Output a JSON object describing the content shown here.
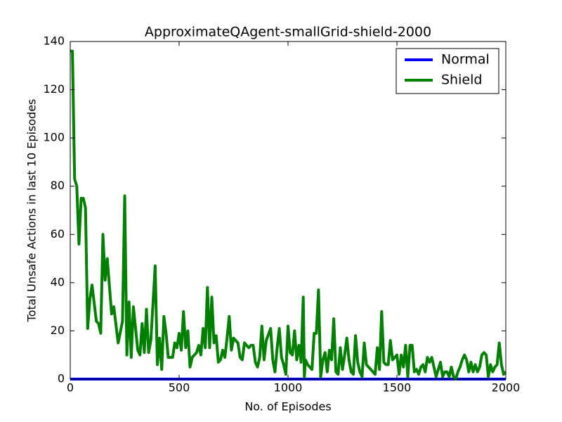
{
  "chart_data": {
    "type": "line",
    "title": "ApproximateQAgent-smallGrid-shield-2000",
    "x_label": "No. of Episodes",
    "y_label": "Total Unsafe Actions in last 10 Episodes",
    "xlim": [
      0,
      2000
    ],
    "xticks": [
      0,
      500,
      1000,
      1500,
      2000
    ],
    "ylim": [
      0,
      140
    ],
    "yticks": [
      0,
      20,
      40,
      60,
      80,
      100,
      120,
      140
    ],
    "grid": false,
    "legend": "upper right",
    "series": [
      {
        "name": "Normal",
        "color": "#0000ff",
        "x": [
          0,
          2000
        ],
        "values": [
          0,
          0
        ]
      },
      {
        "name": "Shield",
        "color": "#008000",
        "x": [
          0,
          10,
          20,
          30,
          40,
          50,
          60,
          70,
          80,
          90,
          100,
          120,
          130,
          140,
          150,
          160,
          170,
          190,
          200,
          220,
          240,
          250,
          260,
          270,
          280,
          290,
          310,
          320,
          330,
          340,
          350,
          360,
          370,
          390,
          400,
          410,
          420,
          430,
          440,
          450,
          470,
          480,
          490,
          500,
          510,
          520,
          530,
          540,
          550,
          560,
          580,
          590,
          600,
          610,
          620,
          630,
          640,
          650,
          660,
          670,
          680,
          690,
          700,
          710,
          720,
          730,
          740,
          750,
          770,
          780,
          790,
          800,
          820,
          830,
          840,
          850,
          860,
          870,
          880,
          890,
          900,
          920,
          930,
          940,
          950,
          960,
          970,
          980,
          990,
          1000,
          1010,
          1020,
          1030,
          1040,
          1050,
          1060,
          1070,
          1075,
          1080,
          1090,
          1100,
          1110,
          1120,
          1130,
          1140,
          1150,
          1160,
          1170,
          1180,
          1190,
          1200,
          1210,
          1220,
          1230,
          1240,
          1250,
          1260,
          1270,
          1280,
          1290,
          1300,
          1310,
          1320,
          1330,
          1340,
          1350,
          1360,
          1370,
          1380,
          1390,
          1400,
          1410,
          1420,
          1430,
          1440,
          1450,
          1460,
          1470,
          1480,
          1490,
          1500,
          1510,
          1520,
          1530,
          1540,
          1550,
          1560,
          1570,
          1580,
          1590,
          1600,
          1610,
          1620,
          1630,
          1640,
          1650,
          1660,
          1670,
          1680,
          1690,
          1700,
          1710,
          1720,
          1730,
          1740,
          1750,
          1760,
          1770,
          1780,
          1790,
          1800,
          1810,
          1820,
          1830,
          1840,
          1850,
          1860,
          1870,
          1880,
          1890,
          1900,
          1910,
          1920,
          1930,
          1940,
          1950,
          1960,
          1970,
          1980,
          1990,
          2000
        ],
        "values": [
          136,
          136,
          83,
          80,
          56,
          75,
          75,
          71,
          21,
          33,
          39,
          24,
          23,
          19,
          60,
          41,
          50,
          27,
          30,
          15,
          24,
          76,
          10,
          32,
          9,
          30,
          12,
          10,
          23,
          11,
          29,
          11,
          16,
          47,
          6,
          17,
          4,
          26,
          19,
          9,
          9,
          15,
          13,
          19,
          12,
          28,
          13,
          20,
          5,
          9,
          11,
          14,
          10,
          21,
          13,
          38,
          13,
          34,
          15,
          18,
          7,
          8,
          12,
          9,
          17,
          26,
          12,
          17,
          15,
          9,
          8,
          15,
          13,
          14,
          14,
          7,
          5,
          9,
          22,
          8,
          16,
          21,
          8,
          3,
          13,
          21,
          9,
          6,
          2,
          22,
          11,
          10,
          20,
          8,
          14,
          7,
          34,
          1,
          8,
          6,
          5,
          4,
          19,
          19,
          37,
          1,
          8,
          11,
          3,
          12,
          8,
          25,
          3,
          2,
          13,
          4,
          10,
          17,
          8,
          3,
          2,
          18,
          7,
          3,
          1,
          15,
          6,
          5,
          4,
          3,
          2,
          13,
          4,
          28,
          7,
          6,
          6,
          16,
          8,
          9,
          10,
          2,
          10,
          5,
          14,
          1,
          14,
          14,
          3,
          4,
          2,
          5,
          6,
          3,
          9,
          7,
          9,
          5,
          1,
          4,
          7,
          1,
          3,
          3,
          1,
          5,
          1,
          0,
          3,
          5,
          8,
          10,
          8,
          3,
          7,
          3,
          6,
          3,
          5,
          10,
          11,
          10,
          1,
          6,
          3,
          5,
          6,
          15,
          6,
          2,
          3
        ]
      }
    ]
  }
}
